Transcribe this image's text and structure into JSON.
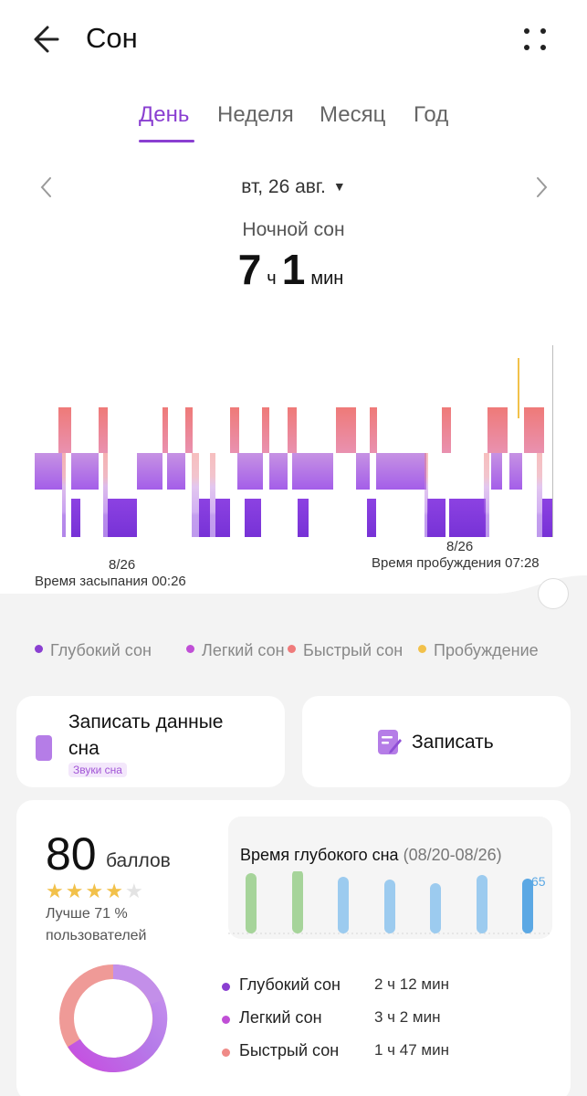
{
  "header": {
    "title": "Сон",
    "back_icon": "arrow-left-icon",
    "more_icon": "more-vertical-icon"
  },
  "tabs": [
    {
      "label": "День",
      "active": true
    },
    {
      "label": "Неделя",
      "active": false
    },
    {
      "label": "Месяц",
      "active": false
    },
    {
      "label": "Год",
      "active": false
    }
  ],
  "date_nav": {
    "date": "вт, 26 авг."
  },
  "summary": {
    "label": "Ночной сон",
    "hours": "7",
    "hours_unit": "ч",
    "minutes": "1",
    "minutes_unit": "мин"
  },
  "chart": {
    "start_date": "8/26",
    "start_label": "Время засыпания 00:26",
    "end_date": "8/26",
    "end_label": "Время пробуждения 07:28"
  },
  "legend": [
    {
      "label": "Глубокий сон",
      "color": "#8a3fd1"
    },
    {
      "label": "Легкий сон",
      "color": "#c04fd6"
    },
    {
      "label": "Быстрый сон",
      "color": "#ef7b7b"
    },
    {
      "label": "Пробуждение",
      "color": "#f2c14a"
    }
  ],
  "actions": {
    "record_data_line1": "Записать данные",
    "record_data_line2": "сна",
    "sound_tag": "Звуки сна",
    "record_label": "Записать",
    "record_data_icon": "sleep-phone-icon",
    "record_icon": "note-edit-icon"
  },
  "score": {
    "value": "80",
    "unit": "баллов",
    "stars_filled": 4,
    "stars_total": 5,
    "better_line1": "Лучше 71 %",
    "better_line2": "пользователей"
  },
  "deep_sleep_chart": {
    "title": "Время глубокого сна",
    "range": "(08/20-08/26)",
    "last_value_label": "65"
  },
  "breakdown": [
    {
      "name": "Глубокий сон",
      "value": "2 ч 12 мин",
      "color": "#8a3fd1",
      "minutes": 132
    },
    {
      "name": "Легкий сон",
      "value": "3 ч 2 мин",
      "color": "#c04fd6",
      "minutes": 182
    },
    {
      "name": "Быстрый сон",
      "value": "1 ч 47 мин",
      "color": "#ef8a87",
      "minutes": 107
    }
  ]
}
